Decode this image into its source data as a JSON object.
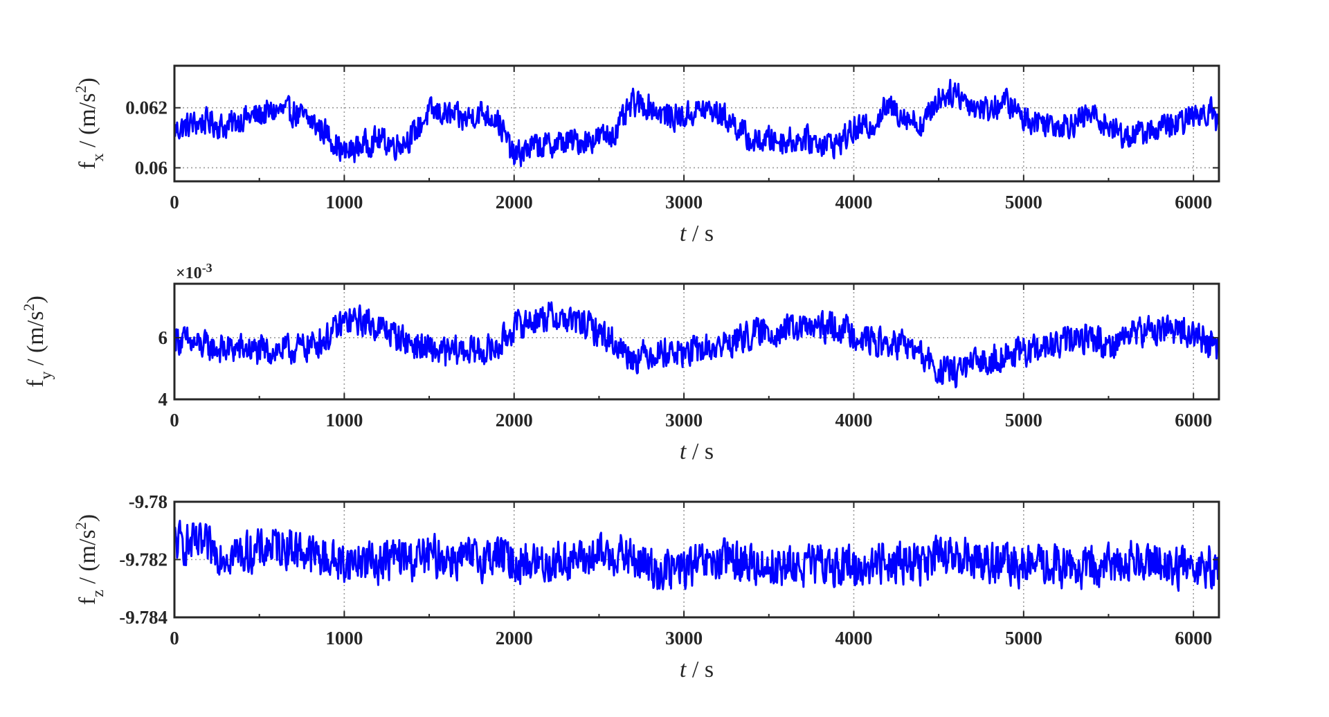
{
  "figure": {
    "axis_colors": {
      "axes": "#262626",
      "grid": "#9a9a9a",
      "series": "#0000ff"
    }
  },
  "chart_data": [
    {
      "type": "line",
      "title": "",
      "xlabel": {
        "italic": "t",
        "rest": " / s"
      },
      "ylabel": {
        "base": "f",
        "sub": "x",
        "unit": " / (m/s",
        "sup": "2",
        "close": ")"
      },
      "xlim": [
        0,
        6150
      ],
      "ylim": [
        0.05955,
        0.0634
      ],
      "xticks": [
        0,
        1000,
        2000,
        3000,
        4000,
        5000,
        6000
      ],
      "xtick_labels": [
        "0",
        "1000",
        "2000",
        "3000",
        "4000",
        "5000",
        "6000"
      ],
      "yticks": [
        0.06,
        0.062
      ],
      "ytick_labels": [
        "0.06",
        "0.062"
      ],
      "grid": true,
      "exponent_label": null,
      "series": [
        {
          "color": "#0000ff",
          "x": [
            0,
            100,
            200,
            300,
            400,
            500,
            600,
            700,
            800,
            900,
            1000,
            1100,
            1200,
            1300,
            1400,
            1500,
            1600,
            1700,
            1800,
            1900,
            2000,
            2100,
            2200,
            2300,
            2400,
            2500,
            2600,
            2700,
            2800,
            2900,
            3000,
            3100,
            3200,
            3300,
            3400,
            3500,
            3600,
            3700,
            3800,
            3900,
            4000,
            4100,
            4200,
            4300,
            4400,
            4500,
            4600,
            4700,
            4800,
            4900,
            5000,
            5100,
            5200,
            5300,
            5400,
            5500,
            5600,
            5700,
            5800,
            5900,
            6000,
            6100,
            6150
          ],
          "y": [
            0.06125,
            0.06145,
            0.06155,
            0.06135,
            0.06165,
            0.06175,
            0.0619,
            0.06185,
            0.06155,
            0.06115,
            0.06045,
            0.06075,
            0.06095,
            0.06075,
            0.06105,
            0.06185,
            0.0618,
            0.0616,
            0.06185,
            0.06165,
            0.06035,
            0.0607,
            0.06075,
            0.06085,
            0.0609,
            0.061,
            0.0612,
            0.06215,
            0.06205,
            0.0617,
            0.0617,
            0.06195,
            0.06185,
            0.06145,
            0.06085,
            0.06095,
            0.0609,
            0.06095,
            0.06085,
            0.0608,
            0.06125,
            0.0614,
            0.06205,
            0.06175,
            0.0614,
            0.06235,
            0.06255,
            0.06205,
            0.06195,
            0.0622,
            0.06165,
            0.06155,
            0.06145,
            0.0615,
            0.0618,
            0.0614,
            0.06105,
            0.06115,
            0.06135,
            0.0614,
            0.06175,
            0.06195,
            0.06135
          ],
          "noise_amplitude": 0.00055
        }
      ]
    },
    {
      "type": "line",
      "title": "",
      "xlabel": {
        "italic": "t",
        "rest": " / s"
      },
      "ylabel": {
        "base": "f",
        "sub": "y",
        "unit": " / (m/s",
        "sup": "2",
        "close": ")"
      },
      "xlim": [
        0,
        6150
      ],
      "ylim": [
        4.0,
        7.75
      ],
      "xticks": [
        0,
        1000,
        2000,
        3000,
        4000,
        5000,
        6000
      ],
      "xtick_labels": [
        "0",
        "1000",
        "2000",
        "3000",
        "4000",
        "5000",
        "6000"
      ],
      "yticks": [
        4,
        6
      ],
      "ytick_labels": [
        "4",
        "6"
      ],
      "grid": true,
      "exponent_label": {
        "prefix": "×10",
        "sup": "-3"
      },
      "series": [
        {
          "color": "#0000ff",
          "x": [
            0,
            100,
            200,
            300,
            400,
            500,
            600,
            700,
            800,
            900,
            1000,
            1100,
            1200,
            1300,
            1400,
            1500,
            1600,
            1700,
            1800,
            1900,
            2000,
            2100,
            2200,
            2300,
            2400,
            2500,
            2600,
            2700,
            2800,
            2900,
            3000,
            3100,
            3200,
            3300,
            3400,
            3500,
            3600,
            3700,
            3800,
            3900,
            4000,
            4100,
            4200,
            4300,
            4400,
            4500,
            4600,
            4700,
            4800,
            4900,
            5000,
            5100,
            5200,
            5300,
            5400,
            5500,
            5600,
            5700,
            5800,
            5900,
            6000,
            6100,
            6150
          ],
          "y": [
            6.0,
            5.8,
            5.7,
            5.6,
            5.65,
            5.55,
            5.6,
            5.6,
            5.75,
            6.0,
            6.5,
            6.55,
            6.35,
            6.1,
            5.8,
            5.6,
            5.5,
            5.6,
            5.55,
            5.65,
            6.35,
            6.55,
            6.7,
            6.6,
            6.45,
            6.2,
            5.8,
            5.35,
            5.5,
            5.55,
            5.5,
            5.6,
            5.7,
            5.9,
            6.1,
            6.2,
            6.25,
            6.3,
            6.3,
            6.35,
            6.15,
            5.9,
            5.75,
            5.8,
            5.4,
            4.9,
            4.9,
            5.1,
            5.3,
            5.45,
            5.5,
            5.65,
            5.75,
            5.95,
            6.05,
            5.7,
            6.1,
            6.2,
            6.25,
            6.3,
            6.1,
            5.8,
            5.6
          ],
          "noise_amplitude": 0.6
        }
      ]
    },
    {
      "type": "line",
      "title": "",
      "xlabel": {
        "italic": "t",
        "rest": " / s"
      },
      "ylabel": {
        "base": "f",
        "sub": "z",
        "unit": " / (m/s",
        "sup": "2",
        "close": ")"
      },
      "xlim": [
        0,
        6150
      ],
      "ylim": [
        -9.784,
        -9.78
      ],
      "xticks": [
        0,
        1000,
        2000,
        3000,
        4000,
        5000,
        6000
      ],
      "xtick_labels": [
        "0",
        "1000",
        "2000",
        "3000",
        "4000",
        "5000",
        "6000"
      ],
      "yticks": [
        -9.784,
        -9.782,
        -9.78
      ],
      "ytick_labels": [
        "-9.784",
        "-9.782",
        "-9.78"
      ],
      "grid": true,
      "exponent_label": null,
      "series": [
        {
          "color": "#0000ff",
          "x": [
            0,
            100,
            200,
            300,
            400,
            500,
            600,
            700,
            800,
            900,
            1000,
            1100,
            1200,
            1300,
            1400,
            1500,
            1600,
            1700,
            1800,
            1900,
            2000,
            2100,
            2200,
            2300,
            2400,
            2500,
            2600,
            2700,
            2800,
            2900,
            3000,
            3100,
            3200,
            3300,
            3400,
            3500,
            3600,
            3700,
            3800,
            3900,
            4000,
            4100,
            4200,
            4300,
            4400,
            4500,
            4600,
            4700,
            4800,
            4900,
            5000,
            5100,
            5200,
            5300,
            5400,
            5500,
            5600,
            5700,
            5800,
            5900,
            6000,
            6100,
            6150
          ],
          "y": [
            -9.7814,
            -9.7815,
            -9.7816,
            -9.7818,
            -9.7818,
            -9.7817,
            -9.7815,
            -9.7816,
            -9.7818,
            -9.782,
            -9.7821,
            -9.782,
            -9.7821,
            -9.7819,
            -9.782,
            -9.7819,
            -9.7819,
            -9.782,
            -9.782,
            -9.7818,
            -9.7821,
            -9.7821,
            -9.7821,
            -9.782,
            -9.782,
            -9.7819,
            -9.7818,
            -9.782,
            -9.7823,
            -9.7824,
            -9.7823,
            -9.7822,
            -9.7821,
            -9.782,
            -9.7822,
            -9.7822,
            -9.7823,
            -9.7822,
            -9.7822,
            -9.7822,
            -9.7823,
            -9.7822,
            -9.782,
            -9.7821,
            -9.7821,
            -9.7819,
            -9.782,
            -9.7819,
            -9.7821,
            -9.7822,
            -9.7822,
            -9.7822,
            -9.7822,
            -9.7823,
            -9.7823,
            -9.7822,
            -9.7821,
            -9.7819,
            -9.7821,
            -9.7823,
            -9.7822,
            -9.7822,
            -9.7823
          ],
          "noise_amplitude": 0.0009
        }
      ]
    }
  ]
}
